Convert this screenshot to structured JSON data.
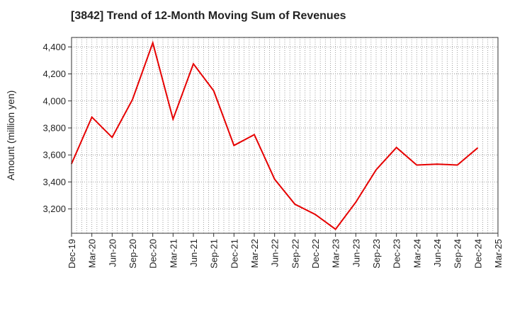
{
  "chart_data": {
    "type": "line",
    "title": "[3842]  Trend of 12-Month Moving Sum of Revenues",
    "xlabel": "",
    "ylabel": "Amount (million yen)",
    "ylim": [
      3020,
      4470
    ],
    "yticks": [
      3200,
      3400,
      3600,
      3800,
      4000,
      4200,
      4400
    ],
    "ytick_labels": [
      "3,200",
      "3,400",
      "3,600",
      "3,800",
      "4,000",
      "4,200",
      "4,400"
    ],
    "categories": [
      "Dec-19",
      "Mar-20",
      "Jun-20",
      "Sep-20",
      "Dec-20",
      "Mar-21",
      "Jun-21",
      "Sep-21",
      "Dec-21",
      "Mar-22",
      "Jun-22",
      "Sep-22",
      "Dec-22",
      "Mar-23",
      "Jun-23",
      "Sep-23",
      "Dec-23",
      "Mar-24",
      "Jun-24",
      "Sep-24",
      "Dec-24",
      "Mar-25"
    ],
    "series": [
      {
        "color": "#e60000",
        "values": [
          3535,
          3880,
          3730,
          4010,
          4430,
          3865,
          4275,
          4075,
          3670,
          3750,
          3420,
          3235,
          3160,
          3050,
          3250,
          3490,
          3655,
          3525,
          3532,
          3525,
          3652,
          null
        ]
      }
    ],
    "grid": true,
    "legend": "none"
  }
}
